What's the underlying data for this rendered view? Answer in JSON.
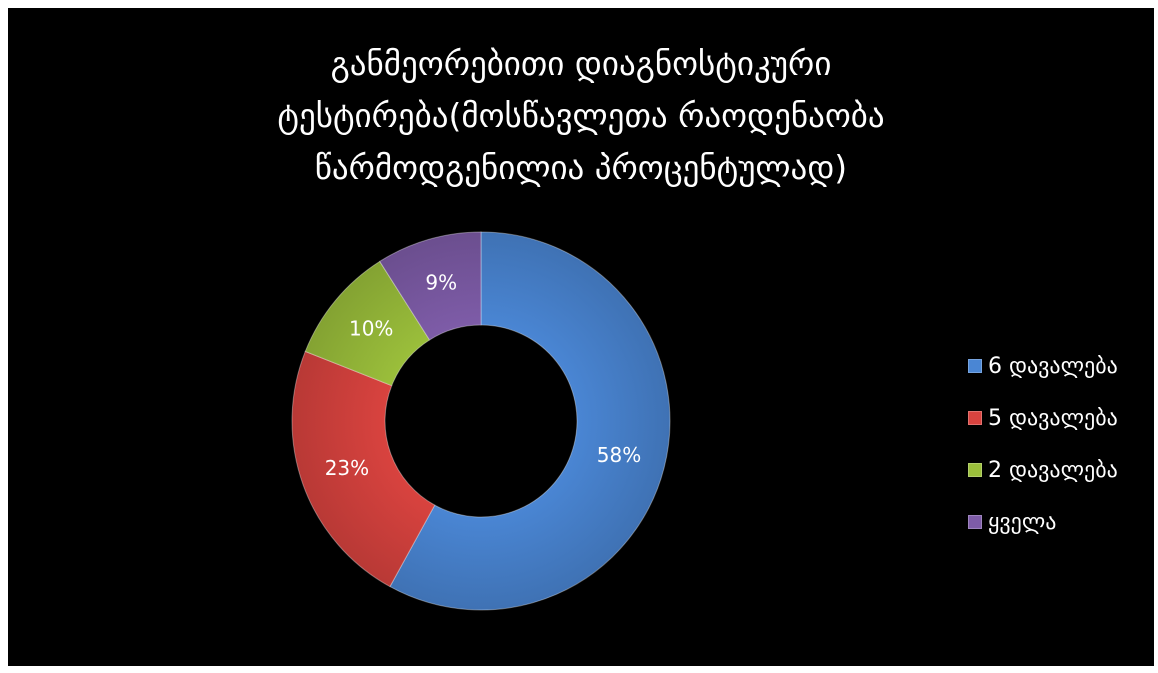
{
  "chart_data": {
    "type": "pie",
    "donut": true,
    "title_lines": [
      "განმეორებითი დიაგნოსტიკური",
      "ტესტირება(მოსწავლეთა რაოდენაობა",
      "წარმოდგენილია პროცენტულად)"
    ],
    "legend_position": "right",
    "slices": [
      {
        "name": "6 დავალება",
        "value": 58,
        "label": "58%",
        "color": "#4a86d4"
      },
      {
        "name": "5 დავალება",
        "value": 23,
        "label": "23%",
        "color": "#d9433f"
      },
      {
        "name": "2 დავალება",
        "value": 10,
        "label": "10%",
        "color": "#9bbf3b"
      },
      {
        "name": "ყველა",
        "value": 9,
        "label": "9%",
        "color": "#7e5ca8"
      }
    ]
  }
}
